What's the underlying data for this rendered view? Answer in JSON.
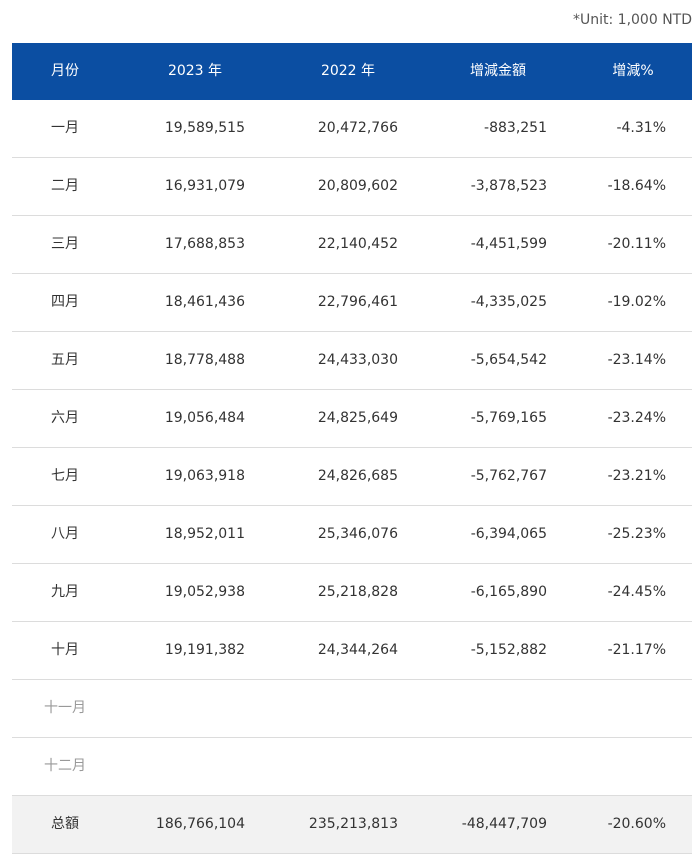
{
  "unit_note": "*Unit: 1,000 NTD",
  "table": {
    "header": [
      "月份",
      "2023 年",
      "2022 年",
      "增減金額",
      "增減%"
    ],
    "rows": [
      [
        "一月",
        "19,589,515",
        "20,472,766",
        "-883,251",
        "-4.31%"
      ],
      [
        "二月",
        "16,931,079",
        "20,809,602",
        "-3,878,523",
        "-18.64%"
      ],
      [
        "三月",
        "17,688,853",
        "22,140,452",
        "-4,451,599",
        "-20.11%"
      ],
      [
        "四月",
        "18,461,436",
        "22,796,461",
        "-4,335,025",
        "-19.02%"
      ],
      [
        "五月",
        "18,778,488",
        "24,433,030",
        "-5,654,542",
        "-23.14%"
      ],
      [
        "六月",
        "19,056,484",
        "24,825,649",
        "-5,769,165",
        "-23.24%"
      ],
      [
        "七月",
        "19,063,918",
        "24,826,685",
        "-5,762,767",
        "-23.21%"
      ],
      [
        "八月",
        "18,952,011",
        "25,346,076",
        "-6,394,065",
        "-25.23%"
      ],
      [
        "九月",
        "19,052,938",
        "25,218,828",
        "-6,165,890",
        "-24.45%"
      ],
      [
        "十月",
        "19,191,382",
        "24,344,264",
        "-5,152,882",
        "-21.17%"
      ],
      [
        "十一月"
      ],
      [
        "十二月"
      ]
    ],
    "total": [
      "总額",
      "186,766,104",
      "235,213,813",
      "-48,447,709",
      "-20.60%"
    ]
  }
}
